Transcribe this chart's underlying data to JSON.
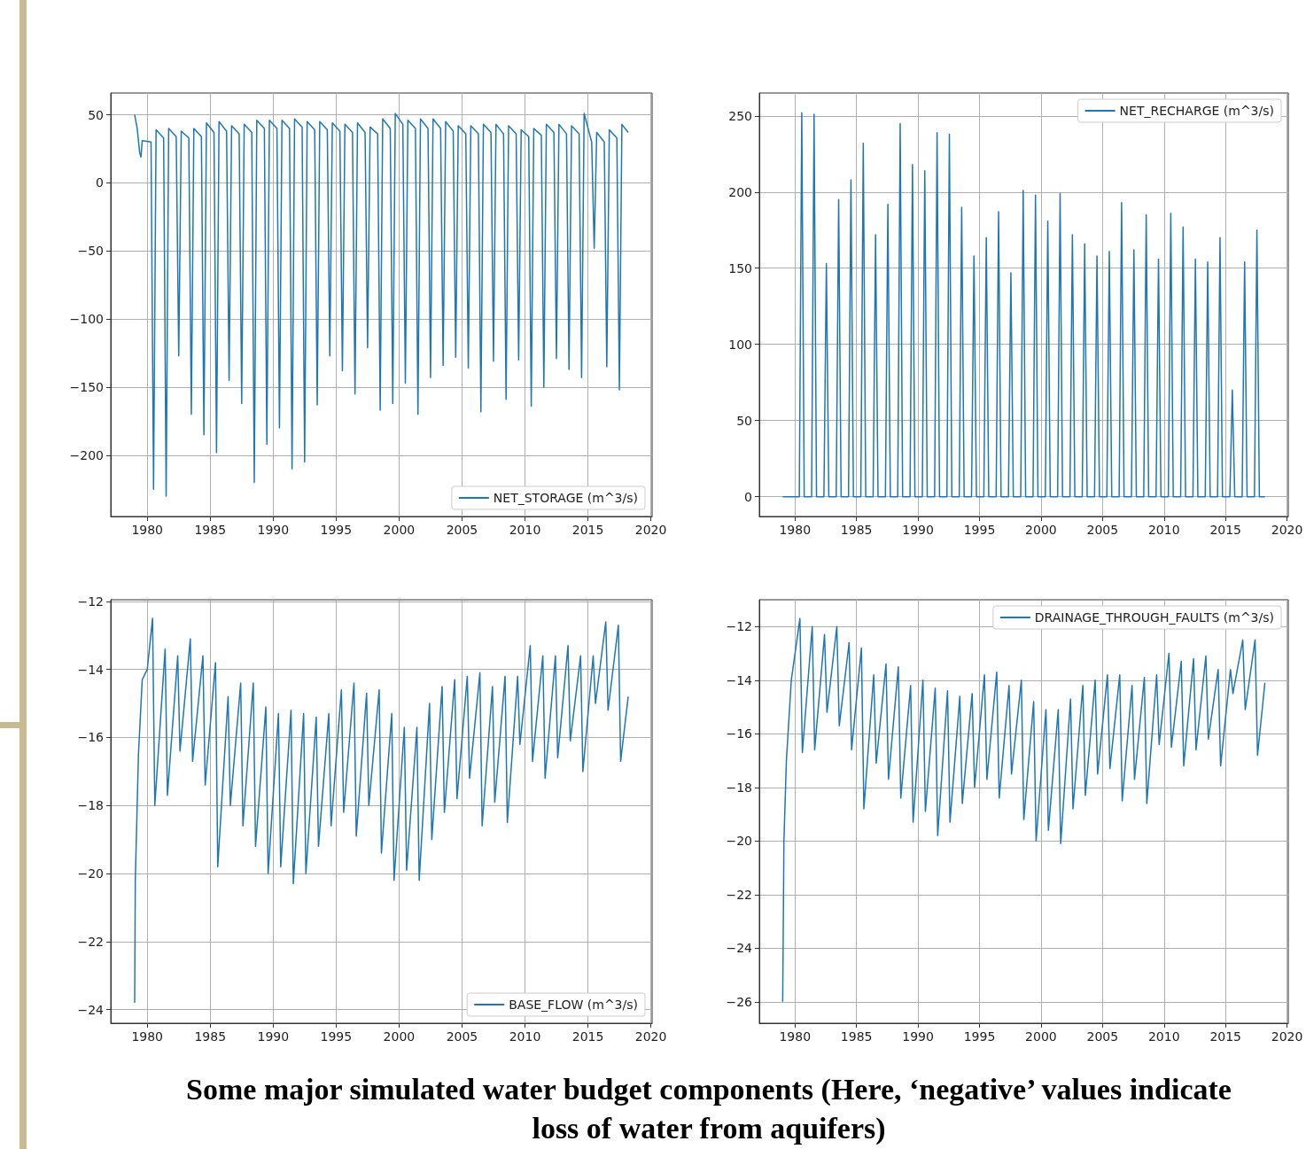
{
  "chart_data": [
    {
      "type": "line",
      "annotations": [
        "Some major simulated water budget components (Here, ‘negative’ values indicate loss of water from aquifers)"
      ],
      "xlim": [
        1977.1,
        2020.1
      ],
      "xticks": [
        1980,
        1985,
        1990,
        1995,
        2000,
        2005,
        2010,
        2015,
        2020
      ],
      "ylim": [
        -245,
        66
      ],
      "yticks": [
        -200,
        -150,
        -100,
        -50,
        0,
        50
      ],
      "grid": true,
      "legend": "bottom right",
      "series": [
        {
          "name": "NET_STORAGE (m^3/s)",
          "color": "#1f77b4",
          "x": [
            1979,
            1979.2,
            1979.4,
            1979.5,
            1979.6,
            1980.3,
            1980.5,
            1980.7,
            1981.3,
            1981.5,
            1981.7,
            1982.3,
            1982.5,
            1982.7,
            1983.3,
            1983.5,
            1983.7,
            1984.3,
            1984.5,
            1984.7,
            1985.3,
            1985.5,
            1985.7,
            1986.3,
            1986.5,
            1986.7,
            1987.3,
            1987.5,
            1987.7,
            1988.3,
            1988.5,
            1988.7,
            1989.3,
            1989.5,
            1989.7,
            1990.3,
            1990.5,
            1990.7,
            1991.3,
            1991.5,
            1991.7,
            1992.3,
            1992.5,
            1992.7,
            1993.3,
            1993.5,
            1993.7,
            1994.3,
            1994.5,
            1994.7,
            1995.3,
            1995.5,
            1995.7,
            1996.3,
            1996.5,
            1996.7,
            1997.3,
            1997.5,
            1997.7,
            1998.3,
            1998.5,
            1998.7,
            1999.3,
            1999.5,
            1999.7,
            2000.3,
            2000.5,
            2000.7,
            2001.3,
            2001.5,
            2001.7,
            2002.3,
            2002.5,
            2002.7,
            2003.3,
            2003.5,
            2003.7,
            2004.3,
            2004.5,
            2004.7,
            2005.3,
            2005.5,
            2005.7,
            2006.3,
            2006.5,
            2006.7,
            2007.3,
            2007.5,
            2007.7,
            2008.3,
            2008.5,
            2008.7,
            2009.3,
            2009.5,
            2009.7,
            2010.3,
            2010.5,
            2010.7,
            2011.3,
            2011.5,
            2011.7,
            2012.3,
            2012.5,
            2012.7,
            2013.3,
            2013.5,
            2013.7,
            2014.3,
            2014.5,
            2014.7,
            2015.3,
            2015.5,
            2015.7,
            2016.3,
            2016.5,
            2016.7,
            2017.3,
            2017.5,
            2017.7,
            2018.2
          ],
          "values": [
            50,
            40,
            22,
            19,
            31,
            30,
            -225,
            39,
            33,
            -230,
            40,
            34,
            -127,
            38,
            33,
            -170,
            40,
            34,
            -185,
            44,
            37,
            -198,
            45,
            38,
            -145,
            42,
            36,
            -162,
            43,
            37,
            -220,
            46,
            40,
            -192,
            46,
            40,
            -180,
            46,
            40,
            -210,
            47,
            41,
            -205,
            45,
            39,
            -163,
            45,
            39,
            -127,
            44,
            38,
            -138,
            43,
            37,
            -155,
            44,
            37,
            -121,
            41,
            36,
            -167,
            47,
            40,
            -162,
            51,
            43,
            -147,
            46,
            40,
            -170,
            47,
            40,
            -143,
            47,
            40,
            -134,
            45,
            38,
            -128,
            42,
            36,
            -136,
            42,
            36,
            -168,
            43,
            37,
            -131,
            43,
            36,
            -159,
            42,
            36,
            -130,
            39,
            34,
            -164,
            40,
            35,
            -150,
            43,
            37,
            -129,
            43,
            36,
            -137,
            42,
            36,
            -143,
            51,
            30,
            -48,
            37,
            30,
            -135,
            39,
            33,
            -152,
            43,
            37
          ]
        }
      ]
    },
    {
      "type": "line",
      "xlim": [
        1977.1,
        2020.1
      ],
      "xticks": [
        1980,
        1985,
        1990,
        1995,
        2000,
        2005,
        2010,
        2015,
        2020
      ],
      "ylim": [
        -13,
        265
      ],
      "yticks": [
        0,
        50,
        100,
        150,
        200,
        250
      ],
      "grid": true,
      "legend": "top right",
      "series": [
        {
          "name": "NET_RECHARGE (m^3/s)",
          "color": "#1f77b4",
          "x": [
            1979,
            1980.35,
            1980.55,
            1980.75,
            1981.35,
            1981.55,
            1981.75,
            1982.35,
            1982.55,
            1982.75,
            1983.35,
            1983.55,
            1983.75,
            1984.35,
            1984.55,
            1984.75,
            1985.35,
            1985.55,
            1985.75,
            1986.35,
            1986.55,
            1986.75,
            1987.35,
            1987.55,
            1987.75,
            1988.35,
            1988.55,
            1988.75,
            1989.35,
            1989.55,
            1989.75,
            1990.35,
            1990.55,
            1990.75,
            1991.35,
            1991.55,
            1991.75,
            1992.35,
            1992.55,
            1992.75,
            1993.35,
            1993.55,
            1993.75,
            1994.35,
            1994.55,
            1994.75,
            1995.35,
            1995.55,
            1995.75,
            1996.35,
            1996.55,
            1996.75,
            1997.35,
            1997.55,
            1997.75,
            1998.35,
            1998.55,
            1998.75,
            1999.35,
            1999.55,
            1999.75,
            2000.35,
            2000.55,
            2000.75,
            2001.35,
            2001.55,
            2001.75,
            2002.35,
            2002.55,
            2002.75,
            2003.35,
            2003.55,
            2003.75,
            2004.35,
            2004.55,
            2004.75,
            2005.35,
            2005.55,
            2005.75,
            2006.35,
            2006.55,
            2006.75,
            2007.35,
            2007.55,
            2007.75,
            2008.35,
            2008.55,
            2008.75,
            2009.35,
            2009.55,
            2009.75,
            2010.35,
            2010.55,
            2010.75,
            2011.35,
            2011.55,
            2011.75,
            2012.35,
            2012.55,
            2012.75,
            2013.35,
            2013.55,
            2013.75,
            2014.35,
            2014.55,
            2014.75,
            2015.35,
            2015.55,
            2015.75,
            2016.35,
            2016.55,
            2016.75,
            2017.35,
            2017.55,
            2017.75,
            2018.2
          ],
          "values": [
            0,
            0,
            252,
            0,
            0,
            251,
            0,
            0,
            153,
            0,
            0,
            195,
            0,
            0,
            208,
            0,
            0,
            232,
            0,
            0,
            172,
            0,
            0,
            192,
            0,
            0,
            245,
            0,
            0,
            218,
            0,
            0,
            214,
            0,
            0,
            239,
            0,
            0,
            238,
            0,
            0,
            190,
            0,
            0,
            158,
            0,
            0,
            170,
            0,
            0,
            187,
            0,
            0,
            147,
            0,
            0,
            201,
            0,
            0,
            198,
            0,
            0,
            181,
            0,
            0,
            199,
            0,
            0,
            172,
            0,
            0,
            166,
            0,
            0,
            158,
            0,
            0,
            161,
            0,
            0,
            193,
            0,
            0,
            162,
            0,
            0,
            185,
            0,
            0,
            156,
            0,
            0,
            186,
            0,
            0,
            177,
            0,
            0,
            156,
            0,
            0,
            154,
            0,
            0,
            170,
            0,
            0,
            70,
            0,
            0,
            154,
            0,
            0,
            175,
            0,
            0
          ]
        }
      ]
    },
    {
      "type": "line",
      "xlim": [
        1977.1,
        2020.1
      ],
      "xticks": [
        1980,
        1985,
        1990,
        1995,
        2000,
        2005,
        2010,
        2015,
        2020
      ],
      "ylim": [
        -24.4,
        -11.95
      ],
      "yticks": [
        -24,
        -22,
        -20,
        -18,
        -16,
        -14,
        -12
      ],
      "grid": true,
      "legend": "bottom right",
      "series": [
        {
          "name": "BASE_FLOW (m^3/s)",
          "color": "#1f77b4",
          "x": [
            1979,
            1979.05,
            1979.3,
            1979.6,
            1980,
            1980.42,
            1980.6,
            1981.42,
            1981.6,
            1982.42,
            1982.6,
            1983.42,
            1983.6,
            1984.42,
            1984.6,
            1985.42,
            1985.6,
            1986.42,
            1986.6,
            1987.42,
            1987.6,
            1988.42,
            1988.6,
            1989.42,
            1989.6,
            1990.42,
            1990.6,
            1991.42,
            1991.6,
            1992.42,
            1992.6,
            1993.42,
            1993.6,
            1994.42,
            1994.6,
            1995.42,
            1995.6,
            1996.42,
            1996.6,
            1997.42,
            1997.6,
            1998.42,
            1998.6,
            1999.42,
            1999.6,
            2000.42,
            2000.6,
            2001.42,
            2001.6,
            2002.42,
            2002.6,
            2003.42,
            2003.6,
            2004.42,
            2004.6,
            2005.42,
            2005.6,
            2006.42,
            2006.6,
            2007.42,
            2007.6,
            2008.42,
            2008.6,
            2009.42,
            2009.6,
            2010.42,
            2010.6,
            2011.42,
            2011.6,
            2012.42,
            2012.6,
            2013.42,
            2013.6,
            2014.42,
            2014.6,
            2015.42,
            2015.6,
            2016.42,
            2016.6,
            2017.42,
            2017.6,
            2018.2
          ],
          "values": [
            -23.8,
            -20.2,
            -16.5,
            -14.3,
            -14,
            -12.5,
            -18,
            -13.4,
            -17.7,
            -13.6,
            -16.4,
            -13.1,
            -16.7,
            -13.6,
            -17.4,
            -13.8,
            -19.8,
            -14.8,
            -18,
            -14.4,
            -18.6,
            -14.4,
            -19.2,
            -15.1,
            -20,
            -15.3,
            -19.8,
            -15.2,
            -20.3,
            -15.3,
            -20,
            -15.4,
            -19.2,
            -15.3,
            -18.6,
            -14.6,
            -18.2,
            -14.4,
            -18.9,
            -14.7,
            -18,
            -14.6,
            -19.4,
            -15.3,
            -20.2,
            -15.7,
            -19.9,
            -15.7,
            -20.2,
            -15,
            -19,
            -14.5,
            -18.2,
            -14.3,
            -17.8,
            -14.2,
            -17.2,
            -14.1,
            -18.6,
            -14.5,
            -17.9,
            -14.2,
            -18.5,
            -14.2,
            -16.2,
            -13.3,
            -16.7,
            -13.6,
            -17.2,
            -13.6,
            -16.6,
            -13.3,
            -16.1,
            -13.6,
            -17,
            -13.6,
            -15,
            -12.6,
            -15.2,
            -12.7,
            -16.7,
            -14.8
          ]
        }
      ]
    },
    {
      "type": "line",
      "xlim": [
        1977.1,
        2020.1
      ],
      "xticks": [
        1980,
        1985,
        1990,
        1995,
        2000,
        2005,
        2010,
        2015,
        2020
      ],
      "ylim": [
        -26.8,
        -11
      ],
      "yticks": [
        -26,
        -24,
        -22,
        -20,
        -18,
        -16,
        -14,
        -12
      ],
      "grid": true,
      "legend": "top right",
      "series": [
        {
          "name": "DRAINAGE_THROUGH_FAULTS (m^3/s)",
          "color": "#1f77b4",
          "x": [
            1979,
            1979.1,
            1979.3,
            1979.7,
            1980.4,
            1980.6,
            1981.4,
            1981.6,
            1982.4,
            1982.6,
            1983.4,
            1983.6,
            1984.4,
            1984.6,
            1985.4,
            1985.6,
            1986.4,
            1986.6,
            1987.4,
            1987.6,
            1988.4,
            1988.6,
            1989.4,
            1989.6,
            1990.4,
            1990.6,
            1991.4,
            1991.6,
            1992.4,
            1992.6,
            1993.4,
            1993.6,
            1994.4,
            1994.6,
            1995.4,
            1995.6,
            1996.4,
            1996.6,
            1997.4,
            1997.6,
            1998.4,
            1998.6,
            1999.4,
            1999.6,
            2000.4,
            2000.6,
            2001.4,
            2001.6,
            2002.4,
            2002.6,
            2003.4,
            2003.6,
            2004.4,
            2004.6,
            2005.4,
            2005.6,
            2006.4,
            2006.6,
            2007.4,
            2007.6,
            2008.4,
            2008.6,
            2009.4,
            2009.6,
            2010.4,
            2010.6,
            2011.4,
            2011.6,
            2012.4,
            2012.6,
            2013.4,
            2013.6,
            2014.4,
            2014.6,
            2015.4,
            2015.6,
            2016.4,
            2016.6,
            2017.4,
            2017.6,
            2018.2
          ],
          "values": [
            -26,
            -20,
            -17,
            -14,
            -11.7,
            -16.7,
            -12,
            -16.6,
            -12.3,
            -15.2,
            -12,
            -15.7,
            -12.6,
            -16.6,
            -12.8,
            -18.8,
            -13.8,
            -17.1,
            -13.4,
            -17.7,
            -13.5,
            -18.4,
            -14.2,
            -19.3,
            -14,
            -18.9,
            -14.3,
            -19.8,
            -14.4,
            -19.3,
            -14.6,
            -18.6,
            -14.5,
            -18,
            -13.8,
            -17.7,
            -13.7,
            -18.4,
            -14.2,
            -17.5,
            -14,
            -19.2,
            -14.8,
            -20,
            -15.1,
            -19.6,
            -15.1,
            -20.1,
            -14.7,
            -18.8,
            -14.2,
            -18.3,
            -14,
            -17.5,
            -13.8,
            -17.3,
            -13.8,
            -18.5,
            -14.2,
            -17.7,
            -13.9,
            -18.6,
            -13.8,
            -16.4,
            -13,
            -16.5,
            -13.3,
            -17.2,
            -13.2,
            -16.6,
            -13.1,
            -16.2,
            -13.6,
            -17.2,
            -13.6,
            -14.5,
            -12.5,
            -15.1,
            -12.5,
            -16.8,
            -14.1
          ]
        }
      ]
    }
  ]
}
